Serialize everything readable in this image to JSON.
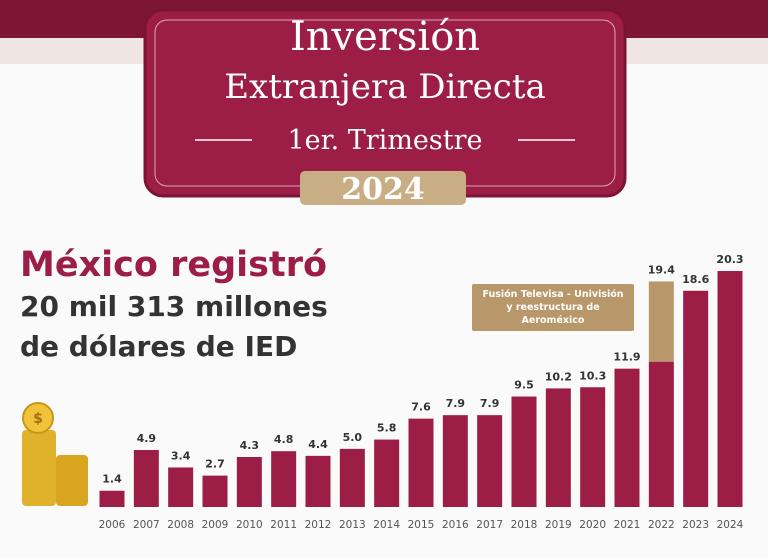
{
  "header": {
    "title_line1": "Inversión",
    "title_line2": "Extranjera Directa",
    "subtitle": "1er. Trimestre",
    "year": "2024"
  },
  "headline": {
    "line1": "México registró",
    "line2": "20 mil 313 millones",
    "line3": "de dólares de IED"
  },
  "chart_data": {
    "type": "stacked-bar",
    "categories": [
      "2006",
      "2007",
      "2008",
      "2009",
      "2010",
      "2011",
      "2012",
      "2013",
      "2014",
      "2015",
      "2016",
      "2017",
      "2018",
      "2019",
      "2020",
      "2021",
      "2022",
      "2023",
      "2024"
    ],
    "series": [
      {
        "color": "#9c1d45",
        "values": [
          1.4,
          4.9,
          3.4,
          2.7,
          4.3,
          4.8,
          4.4,
          5.0,
          5.8,
          7.6,
          7.9,
          7.9,
          9.5,
          10.2,
          10.3,
          11.9,
          12.5,
          18.6,
          20.3
        ]
      },
      {
        "name": "Fusión Televisa - Univisión y reestructura de Aeroméxico",
        "color": "#b8976a",
        "values": [
          null,
          null,
          null,
          null,
          null,
          null,
          null,
          null,
          null,
          null,
          null,
          null,
          null,
          null,
          null,
          null,
          6.9,
          null,
          null
        ]
      }
    ],
    "totals": [
      1.4,
      4.9,
      3.4,
      2.7,
      4.3,
      4.8,
      4.4,
      5.0,
      5.8,
      7.6,
      7.9,
      7.9,
      9.5,
      10.2,
      10.3,
      11.9,
      19.4,
      18.6,
      20.3
    ],
    "total_labels": [
      "1.4",
      "4.9",
      "3.4",
      "2.7",
      "4.3",
      "4.8",
      "4.4",
      "5.0",
      "5.8",
      "7.6",
      "7.9",
      "7.9",
      "9.5",
      "10.2",
      "10.3",
      "11.9",
      "19.4",
      "18.6",
      "20.3"
    ]
  }
}
